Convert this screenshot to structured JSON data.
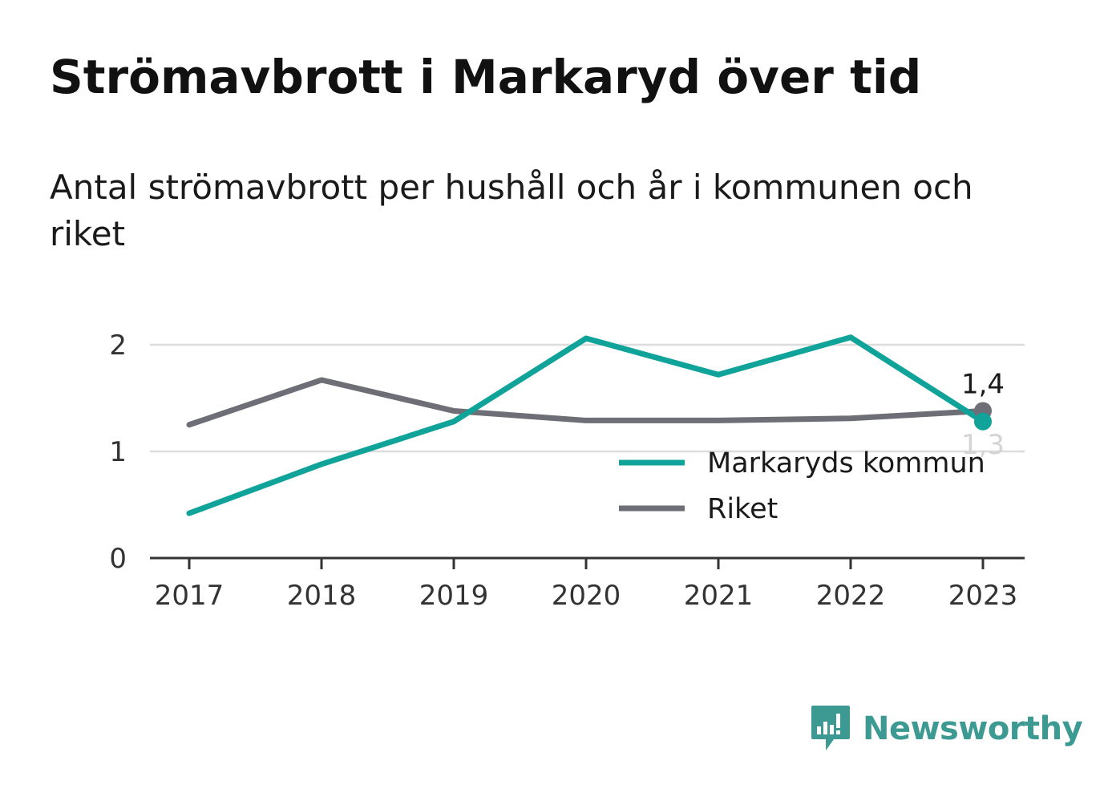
{
  "header": {
    "title": "Strömavbrott i Markaryd över tid",
    "subtitle": "Antal strömavbrott per hushåll och år i kommunen och riket"
  },
  "brand": {
    "name": "Newsworthy",
    "icon": "newsworthy-logo-icon",
    "color": "#3d9a92"
  },
  "chart_data": {
    "type": "line",
    "x": [
      "2017",
      "2018",
      "2019",
      "2020",
      "2021",
      "2022",
      "2023"
    ],
    "ylim": [
      0,
      2.5
    ],
    "yticks": [
      0,
      1,
      2
    ],
    "grid": true,
    "legend_position": "bottom-right",
    "series": [
      {
        "name": "Markaryds kommun",
        "color": "#0fa399",
        "values": [
          0.42,
          0.88,
          1.28,
          2.06,
          1.72,
          2.07,
          1.28
        ],
        "end_label": "1,3"
      },
      {
        "name": "Riket",
        "color": "#6e6e76",
        "values": [
          1.25,
          1.67,
          1.38,
          1.29,
          1.29,
          1.31,
          1.38
        ],
        "end_label": "1,4"
      }
    ]
  }
}
